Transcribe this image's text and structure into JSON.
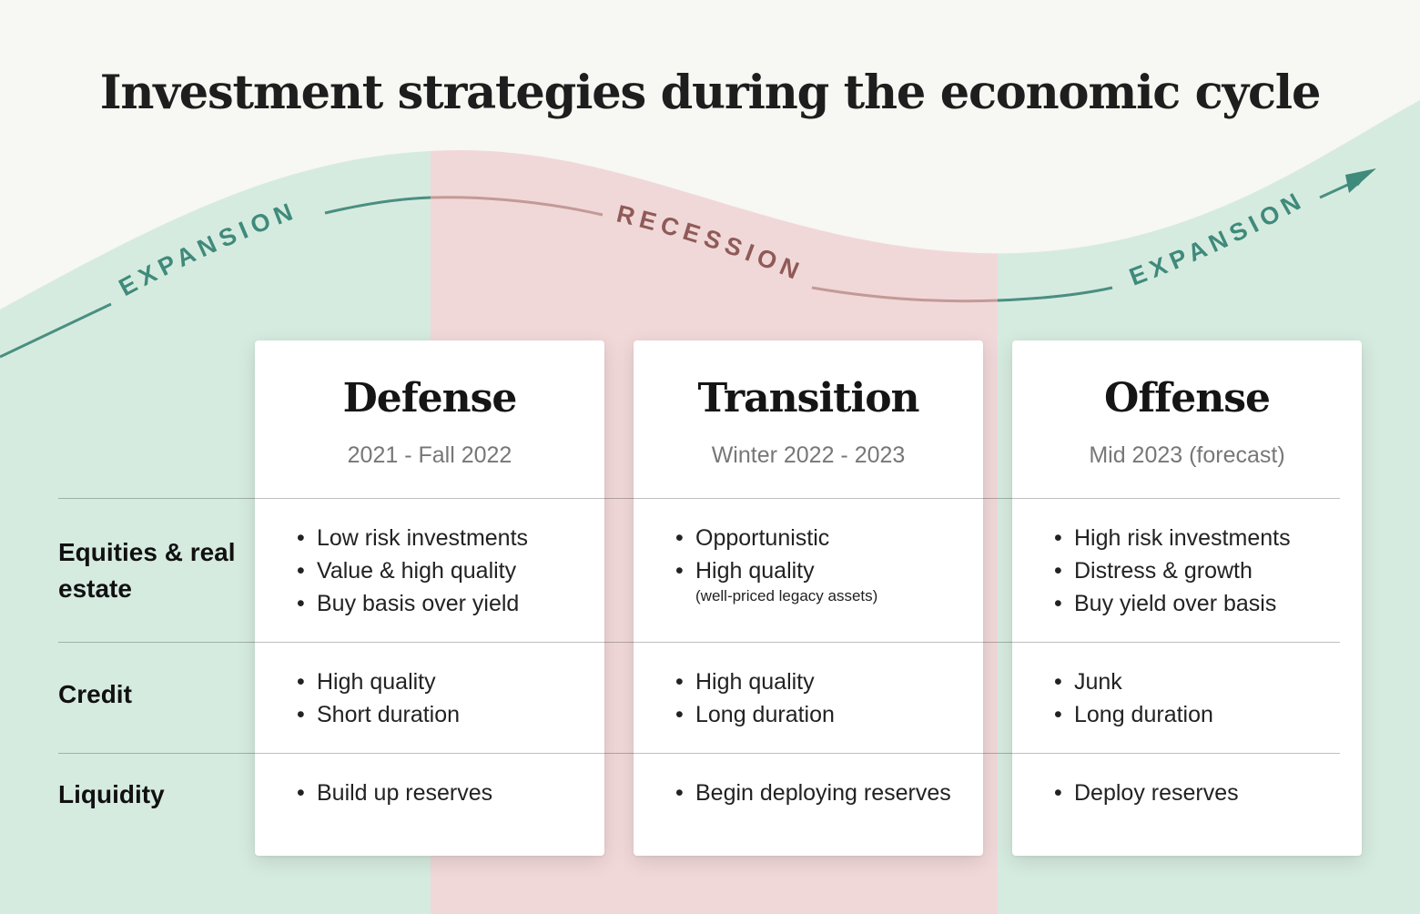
{
  "title": "Investment strategies during the economic cycle",
  "phases": [
    {
      "label": "EXPANSION",
      "color": "#3f8a7b"
    },
    {
      "label": "RECESSION",
      "color": "#8f5a58"
    },
    {
      "label": "EXPANSION",
      "color": "#3f8a7b"
    }
  ],
  "colors": {
    "expansion_fill": "#d6ebe0",
    "recession_fill": "#f1d8d8",
    "expansion_line": "#4a8f80",
    "recession_line": "#c29a97"
  },
  "rows": {
    "equities": "Equities & real estate",
    "credit": "Credit",
    "liquidity": "Liquidity"
  },
  "strategies": [
    {
      "title": "Defense",
      "period": "2021 - Fall 2022",
      "equities": [
        "Low risk investments",
        "Value & high quality",
        "Buy basis over yield"
      ],
      "credit": [
        "High quality",
        "Short duration"
      ],
      "liquidity": [
        "Build up reserves"
      ]
    },
    {
      "title": "Transition",
      "period": "Winter 2022 - 2023",
      "equities": [
        "Opportunistic",
        "High quality"
      ],
      "equities_note": "(well-priced legacy assets)",
      "credit": [
        "High quality",
        "Long duration"
      ],
      "liquidity": [
        "Begin deploying reserves"
      ]
    },
    {
      "title": "Offense",
      "period": "Mid 2023 (forecast)",
      "equities": [
        "High risk investments",
        "Distress & growth",
        "Buy yield over basis"
      ],
      "credit": [
        "Junk",
        "Long duration"
      ],
      "liquidity": [
        "Deploy reserves"
      ]
    }
  ]
}
